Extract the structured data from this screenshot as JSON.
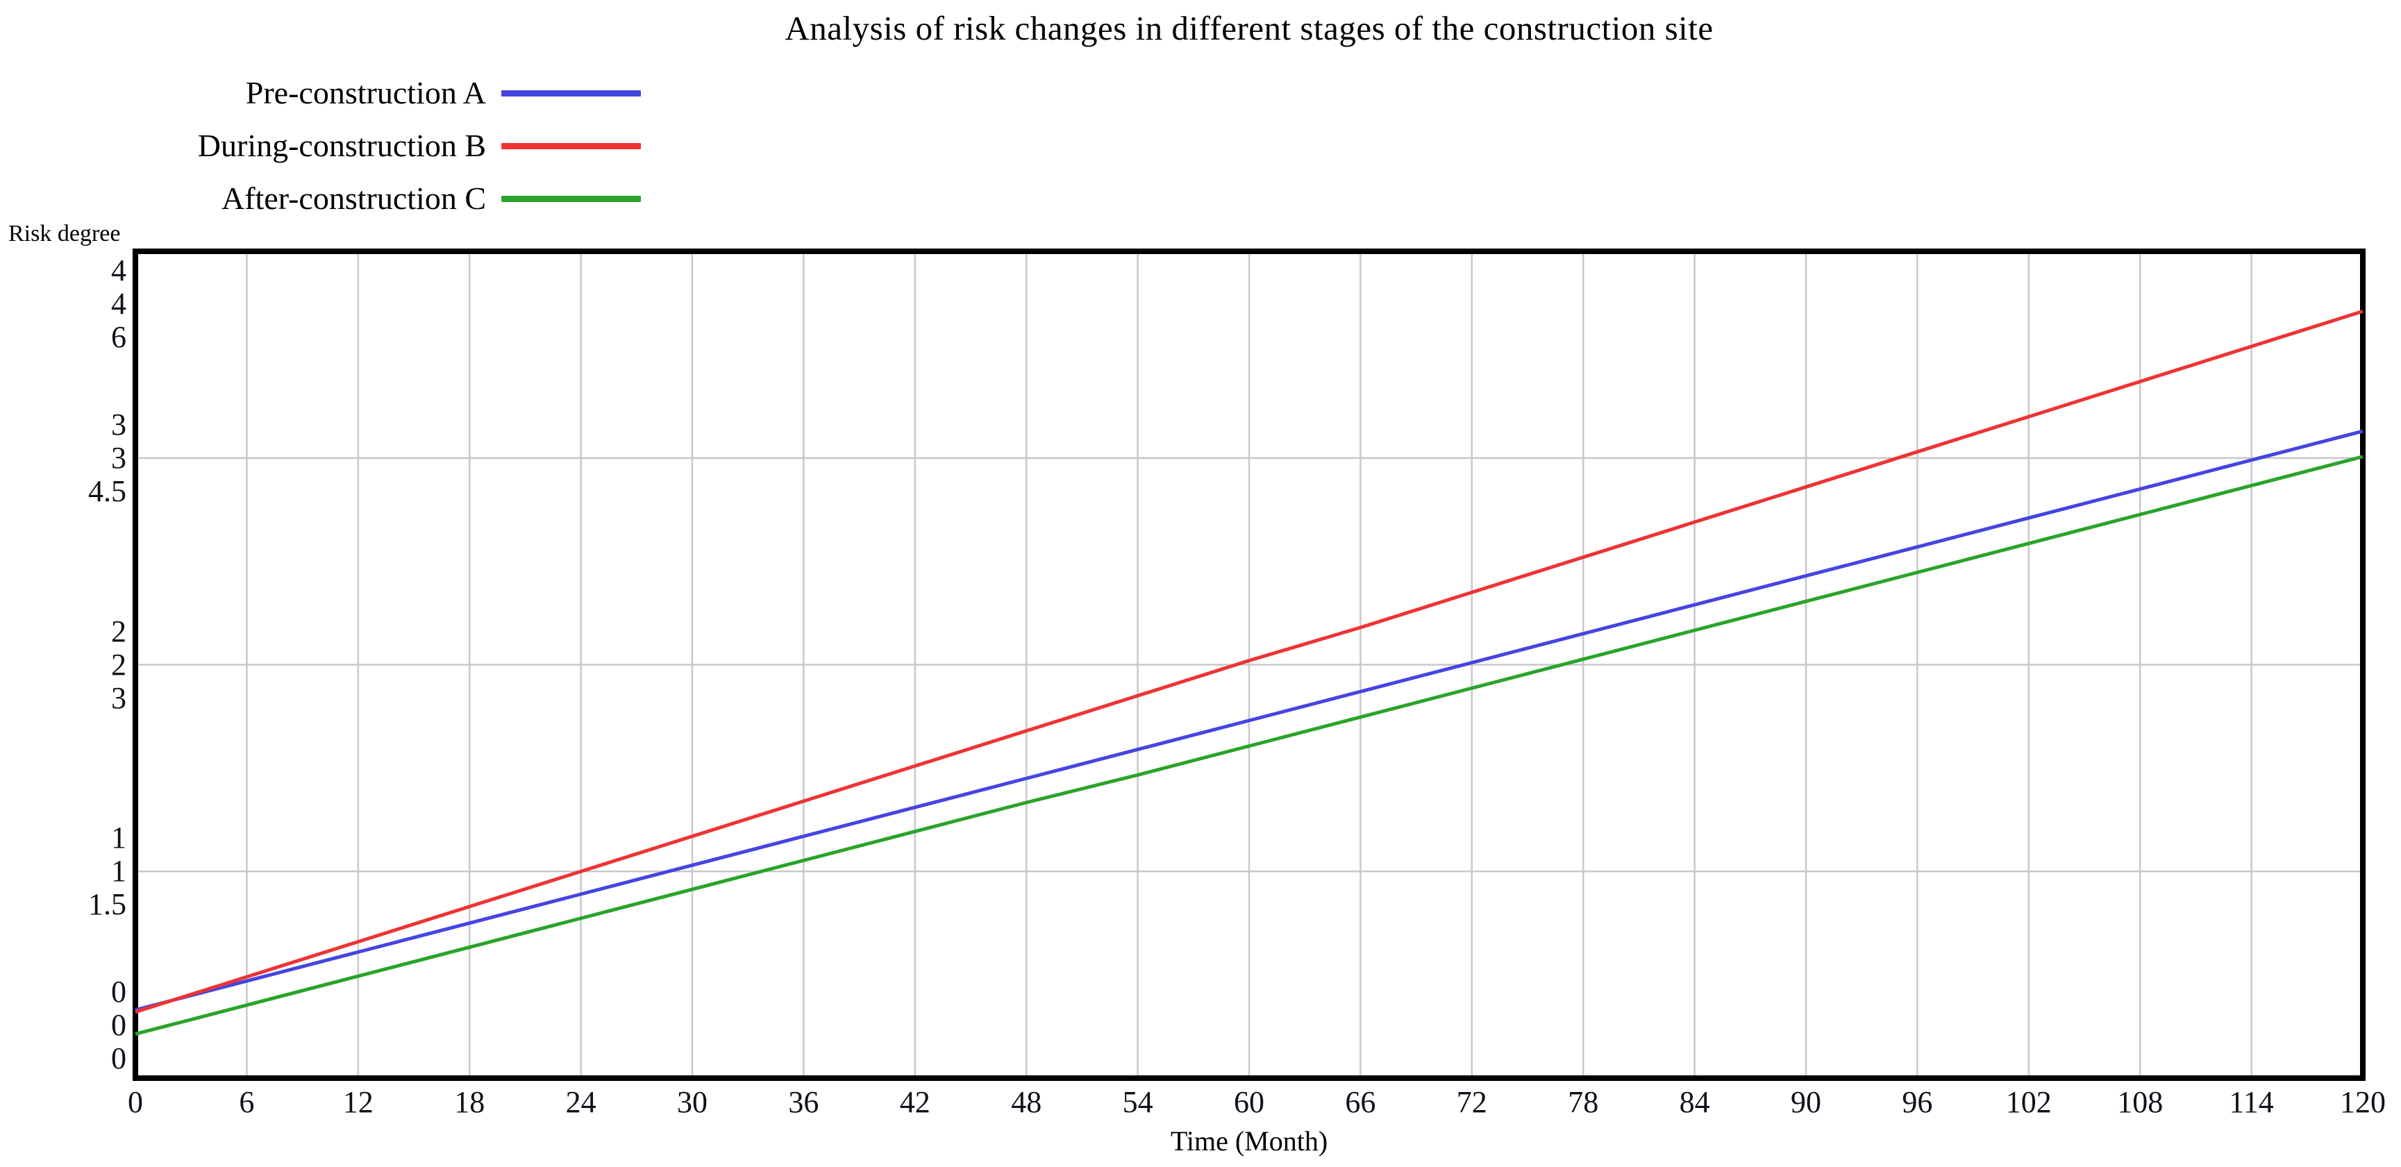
{
  "page": {
    "background": "#ffffff"
  },
  "chart_data": {
    "type": "line",
    "title": "Analysis of risk changes in different stages of the construction site",
    "xlabel": "Time (Month)",
    "ylabel": "Risk degree",
    "legend_position": "top-left",
    "grid": true,
    "x_range": [
      0,
      120
    ],
    "x_ticks": [
      0,
      6,
      12,
      18,
      24,
      30,
      36,
      42,
      48,
      54,
      60,
      66,
      72,
      78,
      84,
      90,
      96,
      102,
      108,
      114,
      120
    ],
    "series": [
      {
        "name": "Pre-construction A",
        "color": "#4545e0",
        "axis_range": [
          0,
          4
        ],
        "axis_ticks": [
          0,
          1,
          2,
          3,
          4
        ],
        "values": [
          0.33,
          0.47,
          0.61,
          0.75,
          0.89,
          1.03,
          1.17,
          1.31,
          1.45,
          1.59,
          1.73,
          1.87,
          2.01,
          2.15,
          2.29,
          2.43,
          2.57,
          2.71,
          2.85,
          2.99,
          3.13
        ]
      },
      {
        "name": "During-construction B",
        "color": "#ee3333",
        "axis_range": [
          0,
          4
        ],
        "axis_ticks": [
          0,
          1,
          2,
          3,
          4
        ],
        "values": [
          0.32,
          0.49,
          0.66,
          0.83,
          1.0,
          1.17,
          1.34,
          1.51,
          1.68,
          1.85,
          2.02,
          2.18,
          2.35,
          2.52,
          2.69,
          2.86,
          3.03,
          3.2,
          3.37,
          3.54,
          3.71
        ]
      },
      {
        "name": "After-construction C",
        "color": "#2aa32a",
        "axis_range": [
          0,
          6
        ],
        "axis_ticks": [
          0,
          1.5,
          3,
          4.5,
          6
        ],
        "values": [
          0.32,
          0.53,
          0.74,
          0.95,
          1.16,
          1.37,
          1.58,
          1.79,
          2.0,
          2.2,
          2.41,
          2.62,
          2.83,
          3.04,
          3.25,
          3.46,
          3.67,
          3.88,
          4.09,
          4.3,
          4.51
        ]
      }
    ],
    "y_axis_label_rows": [
      [
        "4",
        "4",
        "6"
      ],
      [
        "3",
        "3",
        "4.5"
      ],
      [
        "2",
        "2",
        "3"
      ],
      [
        "1",
        "1",
        "1.5"
      ],
      [
        "0",
        "0",
        "0"
      ]
    ],
    "colors": {
      "grid": "#c8c8c8",
      "frame": "#000000",
      "tick_text": "#10101a",
      "title_text": "#000000"
    }
  }
}
